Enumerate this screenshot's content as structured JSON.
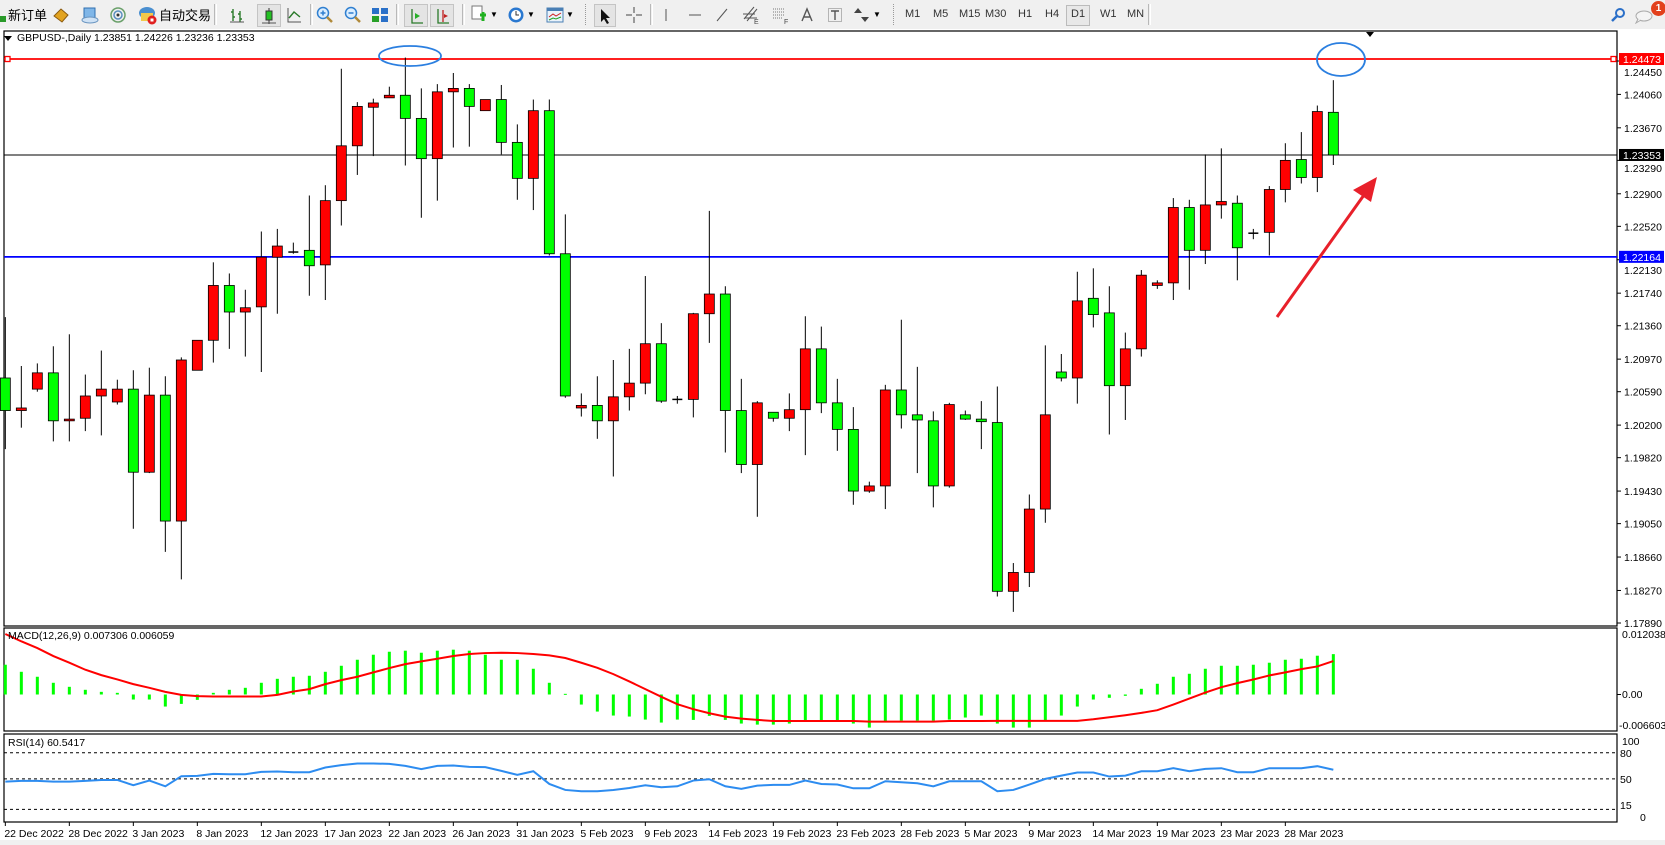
{
  "toolbar": {
    "new_order_label": "新订单",
    "auto_trading_label": "自动交易",
    "timeframes": [
      "M1",
      "M5",
      "M15",
      "M30",
      "H1",
      "H4",
      "D1",
      "W1",
      "MN"
    ],
    "selected_timeframe": "D1",
    "notification_count": "1",
    "icons": [
      "new-order-icon",
      "gold-icon",
      "market-watch-icon",
      "signals-icon",
      "auto-trading-icon",
      "bar-chart-icon",
      "candlestick-icon",
      "line-chart-icon",
      "zoom-in-icon",
      "zoom-out-icon",
      "tile-windows-icon",
      "auto-scroll-icon",
      "chart-shift-icon",
      "indicators-icon",
      "periods-icon",
      "templates-icon",
      "cursor-icon",
      "crosshair-icon",
      "vertical-line-icon",
      "horizontal-line-icon",
      "trendline-icon",
      "fibonacci-icon",
      "fibo-fan-icon",
      "text-icon",
      "text-label-icon",
      "arrows-icon",
      "search-icon",
      "chat-icon"
    ]
  },
  "chart": {
    "title": "GBPUSD-,Daily  1.23851 1.24226 1.23236 1.23353",
    "symbol": "GBPUSD-",
    "period": "Daily",
    "ohlc": {
      "open": 1.23851,
      "high": 1.24226,
      "low": 1.23236,
      "close": 1.23353
    },
    "colors": {
      "bull": "#ff0000",
      "bear": "#00ff00",
      "wick": "#000000",
      "resistance": "#ff0000",
      "support": "#0000ff",
      "bid": "#000000",
      "annotation_ellipse": "#2b7fe0",
      "annotation_arrow": "#e8202a",
      "macd_hist": "#00ff00",
      "macd_signal": "#ff0000",
      "rsi": "#2d8cf0"
    },
    "price_ticks": [
      "1.24450",
      "1.24060",
      "1.23670",
      "1.23290",
      "1.22900",
      "1.22520",
      "1.22130",
      "1.21740",
      "1.21360",
      "1.20970",
      "1.20590",
      "1.20200",
      "1.19820",
      "1.19430",
      "1.19050",
      "1.18660",
      "1.18270",
      "1.17890"
    ],
    "price_range": [
      1.1789,
      1.24473
    ],
    "hlines": [
      {
        "name": "resistance",
        "price": 1.24473,
        "label": "1.24473",
        "color": "#ff0000"
      },
      {
        "name": "bid",
        "price": 1.23353,
        "label": "1.23353",
        "color": "#000000"
      },
      {
        "name": "support",
        "price": 1.22164,
        "label": "1.22164",
        "color": "#0000ff"
      }
    ],
    "candles": [
      [
        1.2075,
        1.2146,
        1.1992,
        1.2037
      ],
      [
        1.2037,
        1.2089,
        1.2017,
        1.204
      ],
      [
        1.2062,
        1.2092,
        1.2059,
        1.2081
      ],
      [
        1.2081,
        1.2112,
        1.2001,
        1.2025
      ],
      [
        1.2025,
        1.2126,
        1.2001,
        1.2027
      ],
      [
        1.2028,
        1.2079,
        1.2013,
        1.2054
      ],
      [
        1.2054,
        1.2107,
        1.2008,
        1.2062
      ],
      [
        1.2047,
        1.2073,
        1.2044,
        1.2062
      ],
      [
        1.2062,
        1.2084,
        1.1899,
        1.1965
      ],
      [
        1.1965,
        1.2087,
        1.1964,
        1.2055
      ],
      [
        1.2055,
        1.2077,
        1.1872,
        1.1908
      ],
      [
        1.1908,
        1.2099,
        1.184,
        1.2096
      ],
      [
        1.2084,
        1.2119,
        1.2084,
        1.2119
      ],
      [
        1.2119,
        1.221,
        1.2093,
        1.2183
      ],
      [
        1.2183,
        1.2197,
        1.2109,
        1.2152
      ],
      [
        1.2152,
        1.2178,
        1.21,
        1.2157
      ],
      [
        1.2158,
        1.2246,
        1.2082,
        1.2216
      ],
      [
        1.2216,
        1.2249,
        1.215,
        1.2229
      ],
      [
        1.2222,
        1.2233,
        1.222,
        1.2222
      ],
      [
        1.2224,
        1.2288,
        1.2171,
        1.2206
      ],
      [
        1.2207,
        1.23,
        1.2166,
        1.2282
      ],
      [
        1.2282,
        1.2436,
        1.2253,
        1.2346
      ],
      [
        1.2346,
        1.2397,
        1.2312,
        1.2392
      ],
      [
        1.2391,
        1.2401,
        1.2334,
        1.2396
      ],
      [
        1.2402,
        1.2415,
        1.2402,
        1.2405
      ],
      [
        1.2405,
        1.2449,
        1.2323,
        1.2378
      ],
      [
        1.2378,
        1.2413,
        1.2262,
        1.2331
      ],
      [
        1.2331,
        1.2418,
        1.2282,
        1.2409
      ],
      [
        1.2409,
        1.2431,
        1.2344,
        1.2413
      ],
      [
        1.2413,
        1.2418,
        1.2345,
        1.2392
      ],
      [
        1.2387,
        1.24,
        1.2387,
        1.24
      ],
      [
        1.24,
        1.2417,
        1.2336,
        1.235
      ],
      [
        1.235,
        1.2371,
        1.2283,
        1.2308
      ],
      [
        1.2308,
        1.24,
        1.2271,
        1.2387
      ],
      [
        1.2387,
        1.24,
        1.2218,
        1.222
      ],
      [
        1.222,
        1.2266,
        1.2052,
        1.2054
      ],
      [
        1.204,
        1.2057,
        1.203,
        1.2043
      ],
      [
        1.2043,
        1.2077,
        1.2004,
        1.2025
      ],
      [
        1.2025,
        1.2096,
        1.196,
        1.2053
      ],
      [
        1.2053,
        1.2109,
        1.2037,
        1.2069
      ],
      [
        1.2069,
        1.2194,
        1.2056,
        1.2115
      ],
      [
        1.2115,
        1.2139,
        1.2046,
        1.2048
      ],
      [
        1.205,
        1.2054,
        1.2045,
        1.205
      ],
      [
        1.205,
        1.2151,
        1.2029,
        1.215
      ],
      [
        1.215,
        1.227,
        1.2116,
        1.2173
      ],
      [
        1.2173,
        1.2182,
        1.1988,
        1.2037
      ],
      [
        1.2037,
        1.2074,
        1.1964,
        1.1974
      ],
      [
        1.1974,
        1.2048,
        1.1913,
        1.2046
      ],
      [
        1.2035,
        1.2035,
        1.2024,
        1.2028
      ],
      [
        1.2028,
        1.2057,
        1.2013,
        1.2038
      ],
      [
        1.2038,
        1.2147,
        1.1985,
        1.2109
      ],
      [
        1.2109,
        1.2135,
        1.2034,
        1.2046
      ],
      [
        1.2046,
        1.2074,
        1.199,
        1.2015
      ],
      [
        1.2015,
        1.2041,
        1.1927,
        1.1943
      ],
      [
        1.1943,
        1.1954,
        1.1941,
        1.1949
      ],
      [
        1.1949,
        1.2067,
        1.1922,
        1.2061
      ],
      [
        1.2061,
        1.2143,
        1.2016,
        1.2032
      ],
      [
        1.2032,
        1.2088,
        1.1964,
        1.2026
      ],
      [
        1.2025,
        1.2036,
        1.1924,
        1.1949
      ],
      [
        1.1949,
        1.2046,
        1.1947,
        1.2044
      ],
      [
        1.2032,
        1.2037,
        1.2026,
        1.2027
      ],
      [
        1.2027,
        1.2048,
        1.1992,
        1.2024
      ],
      [
        1.2023,
        1.2065,
        1.182,
        1.1826
      ],
      [
        1.1826,
        1.1859,
        1.1802,
        1.1848
      ],
      [
        1.1848,
        1.1939,
        1.1831,
        1.1922
      ],
      [
        1.1922,
        1.2113,
        1.1906,
        1.2032
      ],
      [
        1.2082,
        1.2103,
        1.2071,
        1.2075
      ],
      [
        1.2075,
        1.2199,
        1.2045,
        1.2165
      ],
      [
        1.2168,
        1.2203,
        1.2134,
        1.2149
      ],
      [
        1.2151,
        1.2182,
        1.2009,
        1.2066
      ],
      [
        1.2066,
        1.2128,
        1.2026,
        1.2109
      ],
      [
        1.2109,
        1.2201,
        1.21,
        1.2195
      ],
      [
        1.2183,
        1.2189,
        1.2179,
        1.2186
      ],
      [
        1.2186,
        1.2285,
        1.2166,
        1.2274
      ],
      [
        1.2274,
        1.2283,
        1.2178,
        1.2224
      ],
      [
        1.2224,
        1.2336,
        1.2208,
        1.2277
      ],
      [
        1.2277,
        1.2343,
        1.2261,
        1.2281
      ],
      [
        1.2279,
        1.2288,
        1.2189,
        1.2227
      ],
      [
        1.2244,
        1.2249,
        1.2237,
        1.2244
      ],
      [
        1.2245,
        1.2299,
        1.2218,
        1.2295
      ],
      [
        1.2295,
        1.2349,
        1.228,
        1.2329
      ],
      [
        1.233,
        1.2362,
        1.2302,
        1.2309
      ],
      [
        1.2309,
        1.2393,
        1.2292,
        1.2386
      ],
      [
        1.23851,
        1.24226,
        1.23236,
        1.23353
      ]
    ],
    "date_labels": [
      "22 Dec 2022",
      "28 Dec 2022",
      "3 Jan 2023",
      "8 Jan 2023",
      "12 Jan 2023",
      "17 Jan 2023",
      "22 Jan 2023",
      "26 Jan 2023",
      "31 Jan 2023",
      "5 Feb 2023",
      "9 Feb 2023",
      "14 Feb 2023",
      "19 Feb 2023",
      "23 Feb 2023",
      "28 Feb 2023",
      "5 Mar 2023",
      "9 Mar 2023",
      "14 Mar 2023",
      "19 Mar 2023",
      "23 Mar 2023",
      "28 Mar 2023"
    ]
  },
  "macd": {
    "label": "MACD(12,26,9) 0.007306 0.006059",
    "axis_labels": {
      "top": "0.012038",
      "zero": "0.00",
      "bottom": "-0.006603"
    },
    "range": [
      -0.006603,
      0.012038
    ],
    "histogram": [
      0.00539,
      0.00411,
      0.00321,
      0.00212,
      0.00139,
      0.00085,
      0.00048,
      0.0003,
      -0.00091,
      -0.00091,
      -0.00218,
      -0.0017,
      -0.00097,
      0.0003,
      0.00085,
      0.00121,
      0.00212,
      0.00284,
      0.00321,
      0.00339,
      0.00411,
      0.0052,
      0.00629,
      0.0072,
      0.00774,
      0.00793,
      0.00756,
      0.00793,
      0.00811,
      0.00793,
      0.0072,
      0.00629,
      0.00629,
      0.00466,
      0.00212,
      0.00012,
      -0.00182,
      -0.00309,
      -0.00381,
      -0.00399,
      -0.00454,
      -0.00508,
      -0.00454,
      -0.0046,
      -0.00387,
      -0.0046,
      -0.00526,
      -0.00545,
      -0.00545,
      -0.00526,
      -0.00472,
      -0.00472,
      -0.0049,
      -0.00526,
      -0.00599,
      -0.0049,
      -0.00472,
      -0.00472,
      -0.00472,
      -0.00454,
      -0.00417,
      -0.00381,
      -0.00526,
      -0.00599,
      -0.00599,
      -0.00472,
      -0.00381,
      -0.00218,
      -0.00091,
      -0.0006,
      -0.00024,
      0.00103,
      0.00194,
      0.00321,
      0.00375,
      0.00466,
      0.0052,
      0.0052,
      0.00539,
      0.00575,
      0.00629,
      0.00647,
      0.00702,
      0.007306
    ],
    "signal": [
      0.01095,
      0.00962,
      0.0084,
      0.00696,
      0.00575,
      0.00448,
      0.00351,
      0.00272,
      0.00188,
      0.00121,
      0.00048,
      -6e-05,
      -0.0003,
      -0.00036,
      -0.00036,
      -0.00036,
      -0.00036,
      -6e-05,
      0.00054,
      0.00097,
      0.00188,
      0.0026,
      0.00321,
      0.004,
      0.00478,
      0.0055,
      0.00599,
      0.00647,
      0.00696,
      0.00732,
      0.0075,
      0.00756,
      0.0075,
      0.00732,
      0.00708,
      0.0066,
      0.00575,
      0.00484,
      0.00369,
      0.00236,
      0.00097,
      -0.00042,
      -0.00175,
      -0.00266,
      -0.00339,
      -0.004,
      -0.00436,
      -0.0046,
      -0.0048,
      -0.0048,
      -0.0048,
      -0.0048,
      -0.0048,
      -0.0048,
      -0.0049,
      -0.0049,
      -0.0049,
      -0.0049,
      -0.0049,
      -0.0048,
      -0.0048,
      -0.0048,
      -0.00478,
      -0.00478,
      -0.00478,
      -0.00478,
      -0.00478,
      -0.00478,
      -0.00448,
      -0.00411,
      -0.00375,
      -0.00333,
      -0.00284,
      -0.00182,
      -0.00073,
      0.00036,
      0.00133,
      0.00206,
      0.00272,
      0.00345,
      0.004,
      0.0046,
      0.00508,
      0.006059
    ]
  },
  "rsi": {
    "label": "RSI(14) 60.5417",
    "levels": [
      80,
      50,
      15
    ],
    "axis_labels": [
      "100",
      "80",
      "50",
      "15",
      "0"
    ],
    "values": [
      46.9,
      47.7,
      47.7,
      46.9,
      46.9,
      47.7,
      48.8,
      48.8,
      42.7,
      48.1,
      41.5,
      53.1,
      53.5,
      55.8,
      55.4,
      55.4,
      58.1,
      58.5,
      57.7,
      57.7,
      63.1,
      65.8,
      67.7,
      67.7,
      67.3,
      65,
      61.2,
      65,
      65.4,
      63.8,
      63.5,
      59.2,
      54.6,
      58.8,
      44.2,
      37.3,
      35.8,
      35.8,
      37.3,
      39.6,
      42.7,
      40.4,
      41.5,
      48.1,
      49.6,
      41.5,
      38.5,
      42.3,
      43.1,
      43.1,
      48.1,
      44.2,
      43.5,
      39.2,
      39.2,
      47.3,
      46.2,
      45,
      41.5,
      47.3,
      47.3,
      47.3,
      35.8,
      37.3,
      43.5,
      50,
      53.8,
      57.3,
      57.3,
      52.7,
      53.8,
      58.8,
      58.8,
      62.3,
      58.8,
      61.5,
      62.3,
      57.7,
      57.7,
      62.3,
      62.3,
      62.3,
      64.6,
      60.5417
    ]
  }
}
